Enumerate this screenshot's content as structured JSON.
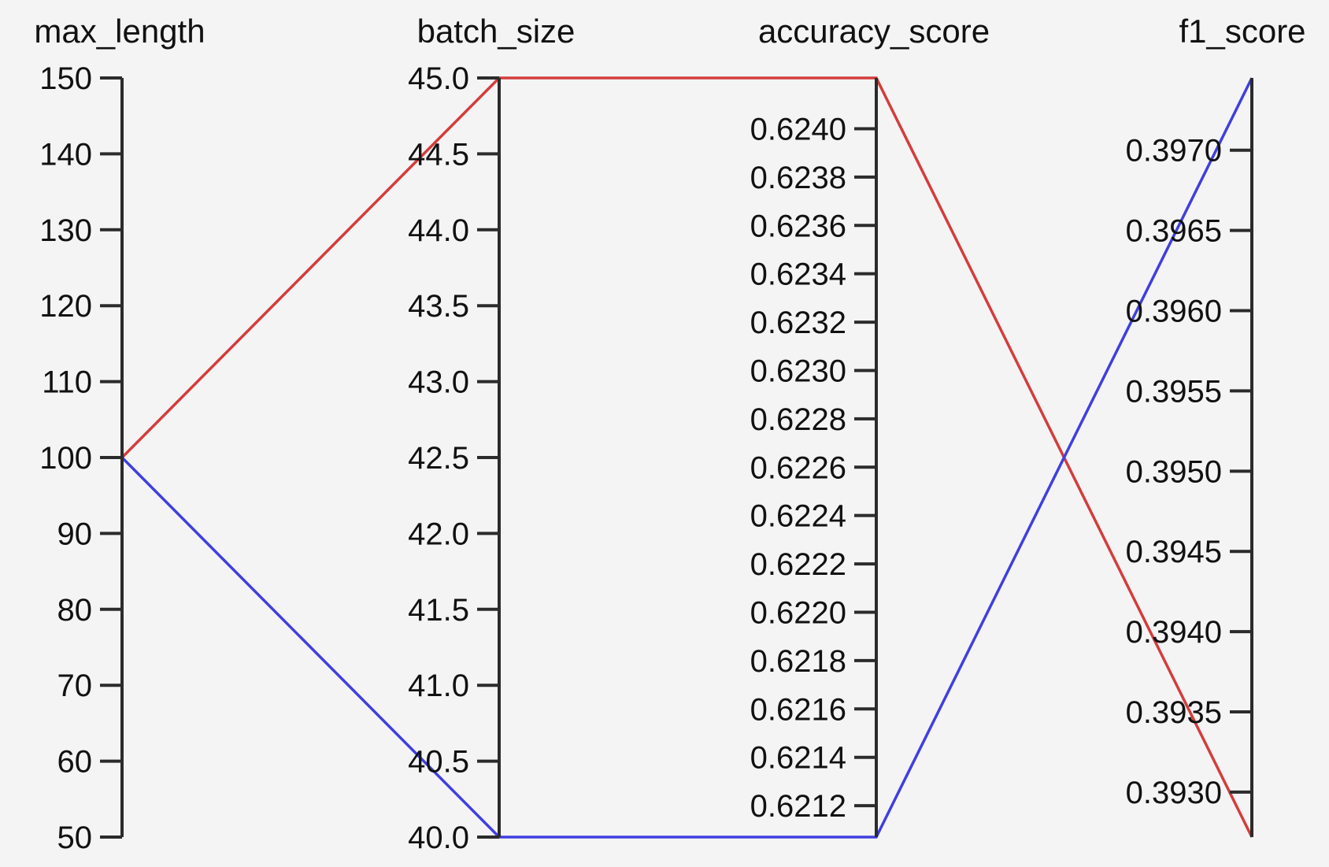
{
  "chart_data": {
    "type": "parallel_coordinates",
    "axes": [
      {
        "name": "max_length",
        "min": 50,
        "max": 150,
        "ticks": [
          "50",
          "60",
          "70",
          "80",
          "90",
          "100",
          "110",
          "120",
          "130",
          "140",
          "150"
        ]
      },
      {
        "name": "batch_size",
        "min": 40.0,
        "max": 45.0,
        "ticks": [
          "40.0",
          "40.5",
          "41.0",
          "41.5",
          "42.0",
          "42.5",
          "43.0",
          "43.5",
          "44.0",
          "44.5",
          "45.0"
        ]
      },
      {
        "name": "accuracy_score",
        "min": 0.62107,
        "max": 0.62421,
        "ticks": [
          "0.6212",
          "0.6214",
          "0.6216",
          "0.6218",
          "0.6220",
          "0.6222",
          "0.6224",
          "0.6226",
          "0.6228",
          "0.6230",
          "0.6232",
          "0.6234",
          "0.6236",
          "0.6238",
          "0.6240"
        ]
      },
      {
        "name": "f1_score",
        "min": 0.39272,
        "max": 0.39745,
        "ticks": [
          "0.3930",
          "0.3935",
          "0.3940",
          "0.3945",
          "0.3950",
          "0.3955",
          "0.3960",
          "0.3965",
          "0.3970"
        ]
      }
    ],
    "series": [
      {
        "color": "#d43c3c",
        "values": [
          100,
          45.0,
          0.62421,
          0.39272
        ]
      },
      {
        "color": "#3f3fe0",
        "values": [
          100,
          40.0,
          0.62107,
          0.39745
        ]
      }
    ]
  }
}
